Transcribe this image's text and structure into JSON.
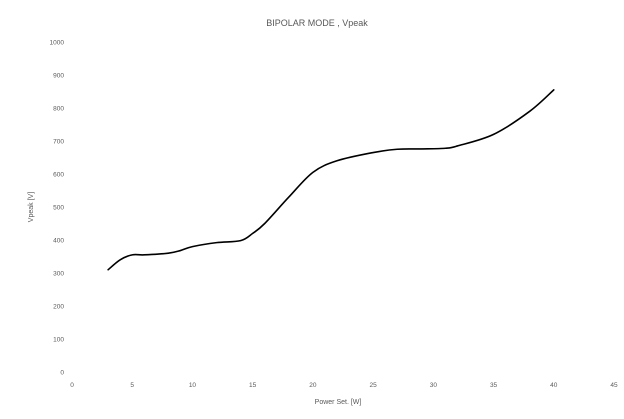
{
  "chart_data": {
    "type": "line",
    "title": "BIPOLAR MODE , Vpeak",
    "xlabel": "Power Set. [W]",
    "ylabel": "Vpeak [V]",
    "xlim": [
      0,
      45
    ],
    "ylim": [
      0,
      1000
    ],
    "x_ticks": [
      0,
      5,
      10,
      15,
      20,
      25,
      30,
      35,
      40,
      45
    ],
    "y_ticks": [
      0,
      100,
      200,
      300,
      400,
      500,
      600,
      700,
      800,
      900,
      1000
    ],
    "grid": false,
    "legend": "none",
    "series": [
      {
        "color": "#000000",
        "points": [
          [
            3,
            310
          ],
          [
            4,
            340
          ],
          [
            5,
            355
          ],
          [
            6,
            355
          ],
          [
            8,
            360
          ],
          [
            9,
            368
          ],
          [
            10,
            380
          ],
          [
            12,
            392
          ],
          [
            14,
            398
          ],
          [
            15,
            420
          ],
          [
            16,
            450
          ],
          [
            18,
            530
          ],
          [
            20,
            605
          ],
          [
            22,
            640
          ],
          [
            25,
            665
          ],
          [
            27,
            675
          ],
          [
            29,
            676
          ],
          [
            31,
            678
          ],
          [
            32,
            685
          ],
          [
            35,
            720
          ],
          [
            38,
            790
          ],
          [
            40,
            855
          ]
        ]
      }
    ]
  }
}
